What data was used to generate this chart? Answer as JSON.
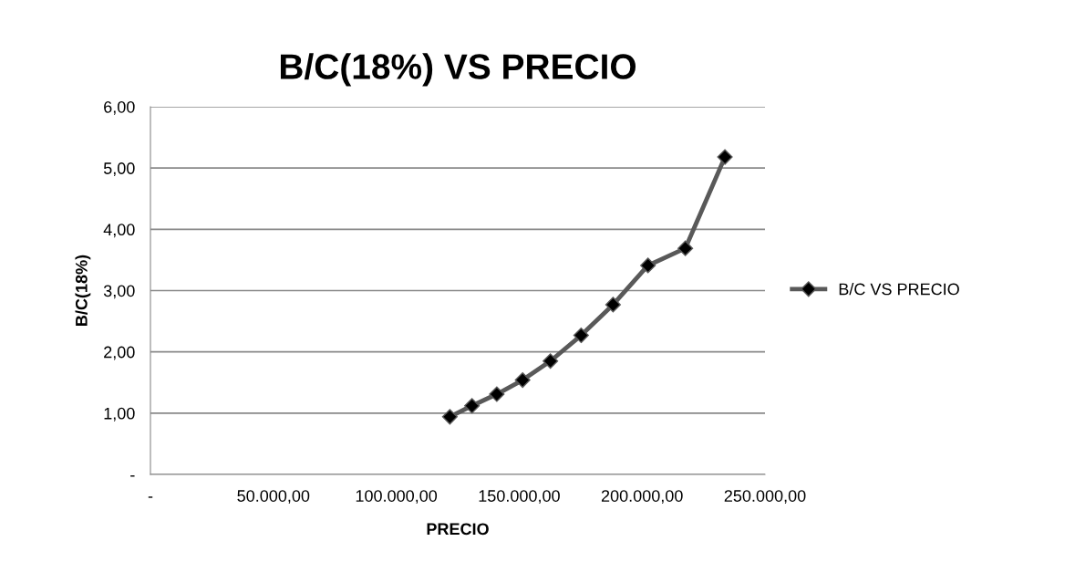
{
  "chart_data": {
    "type": "line",
    "title": "B/C(18%) VS PRECIO",
    "xlabel": "PRECIO",
    "ylabel": "B/C(18%)",
    "x": [
      121800,
      130800,
      140900,
      151400,
      162700,
      175200,
      188200,
      202400,
      217600,
      233700
    ],
    "series": [
      {
        "name": "B/C VS PRECIO",
        "color": "#595959",
        "values": [
          0.94,
          1.12,
          1.31,
          1.54,
          1.85,
          2.27,
          2.77,
          3.41,
          3.69,
          5.18
        ]
      }
    ],
    "xlim": [
      0,
      250000
    ],
    "xticks": [
      {
        "value": 0,
        "label": "-"
      },
      {
        "value": 50000,
        "label": "50.000,00"
      },
      {
        "value": 100000,
        "label": "100.000,00"
      },
      {
        "value": 150000,
        "label": "150.000,00"
      },
      {
        "value": 200000,
        "label": "200.000,00"
      },
      {
        "value": 250000,
        "label": "250.000,00"
      }
    ],
    "ylim": [
      0,
      6
    ],
    "yticks": [
      {
        "value": 0,
        "label": "-"
      },
      {
        "value": 1,
        "label": "1,00"
      },
      {
        "value": 2,
        "label": "2,00"
      },
      {
        "value": 3,
        "label": "3,00"
      },
      {
        "value": 4,
        "label": "4,00"
      },
      {
        "value": 5,
        "label": "5,00"
      },
      {
        "value": 6,
        "label": "6,00"
      }
    ],
    "grid": "y",
    "legend": "right",
    "marker": "diamond",
    "line_style": "solid"
  }
}
